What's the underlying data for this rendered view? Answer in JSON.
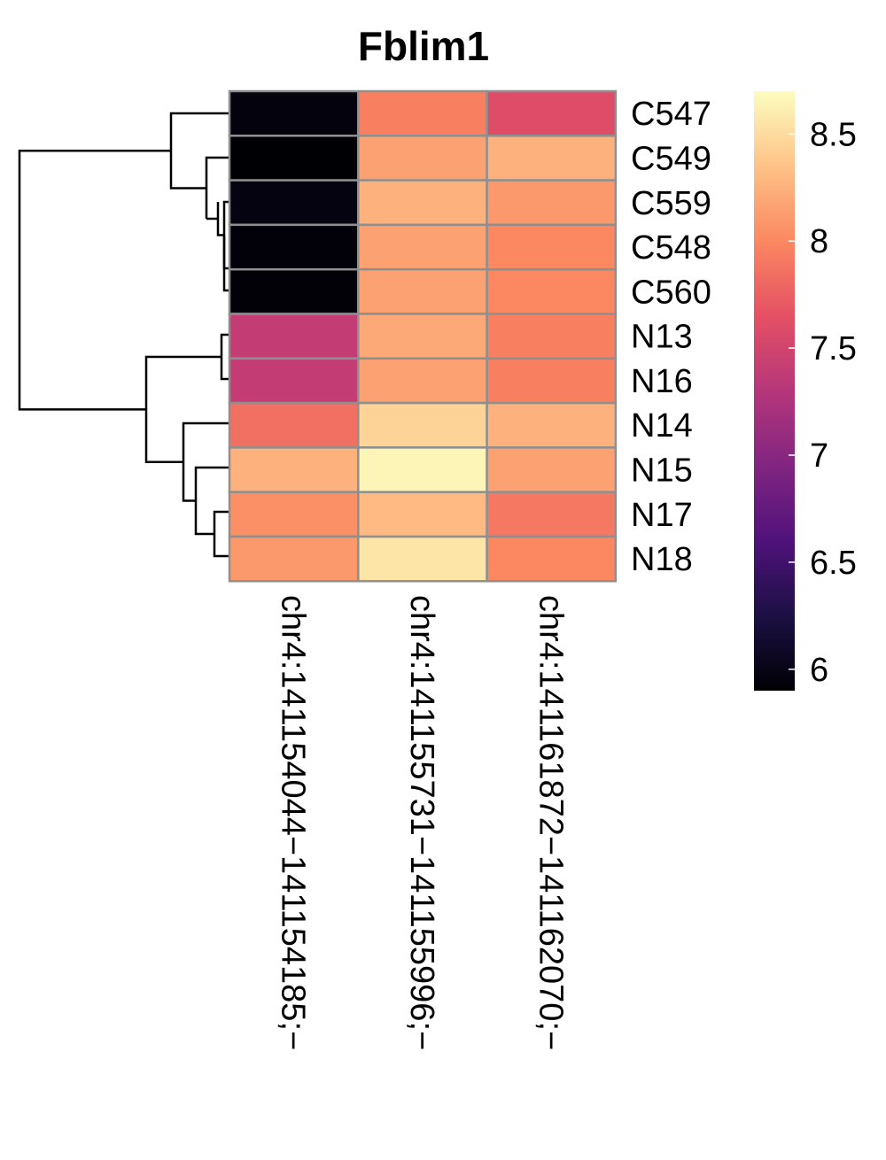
{
  "chart_data": {
    "type": "heatmap",
    "title": "Fblim1",
    "rows": [
      "C547",
      "C549",
      "C559",
      "C548",
      "C560",
      "N13",
      "N16",
      "N14",
      "N15",
      "N17",
      "N18"
    ],
    "columns": [
      "chr4:141154044−141154185;−",
      "chr4:141155731−141155996;−",
      "chr4:141161872−141162070;−"
    ],
    "values": [
      [
        5.95,
        7.95,
        7.6
      ],
      [
        5.9,
        8.15,
        8.25
      ],
      [
        5.97,
        8.25,
        8.1
      ],
      [
        5.93,
        8.15,
        8.0
      ],
      [
        5.92,
        8.15,
        8.0
      ],
      [
        7.4,
        8.2,
        7.95
      ],
      [
        7.4,
        8.15,
        7.95
      ],
      [
        7.85,
        8.45,
        8.25
      ],
      [
        8.25,
        8.65,
        8.15
      ],
      [
        8.05,
        8.3,
        7.9
      ],
      [
        8.1,
        8.55,
        8.0
      ]
    ],
    "colorscale": "magma",
    "colorbar": {
      "min": 5.9,
      "max": 8.7,
      "ticks": [
        6,
        6.5,
        7,
        7.5,
        8,
        8.5
      ],
      "tick_labels": [
        "6",
        "6.5",
        "7",
        "7.5",
        "8",
        "8.5"
      ]
    },
    "row_dendrogram": true,
    "cell_border_color": "#8f8f8f"
  }
}
